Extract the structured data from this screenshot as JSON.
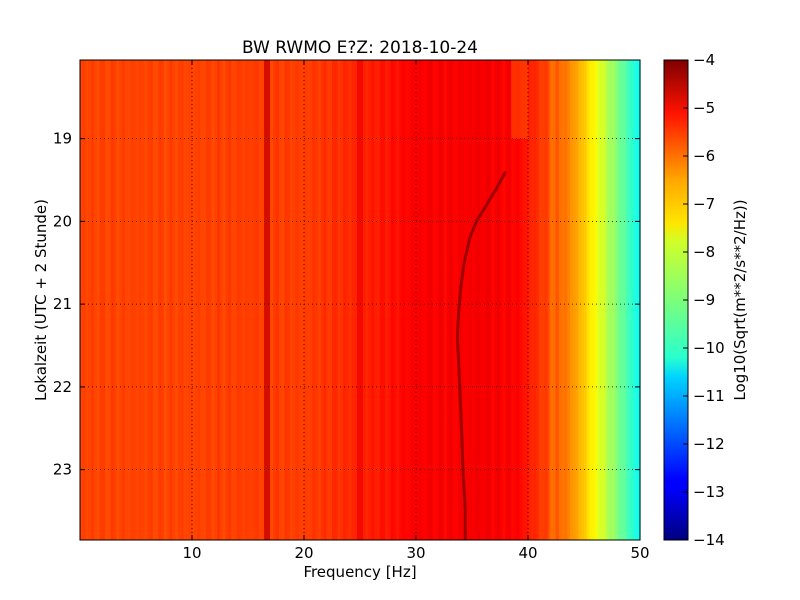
{
  "chart_data": {
    "type": "heatmap",
    "title": "BW RWMO E?Z: 2018-10-24",
    "xlabel": "Frequency [Hz]",
    "ylabel": "Lokalzeit (UTC + 2 Stunde)",
    "xlim": [
      0,
      50
    ],
    "ylim_hours_top_to_bottom": [
      18.05,
      23.85
    ],
    "x_ticks": [
      10,
      20,
      30,
      40,
      50
    ],
    "x_tick_labels": [
      "10",
      "20",
      "30",
      "40",
      "50"
    ],
    "y_ticks": [
      19,
      20,
      21,
      22,
      23
    ],
    "y_tick_labels": [
      "19",
      "20",
      "21",
      "22",
      "23"
    ],
    "grid": true,
    "colormap": "jet",
    "colorbar": {
      "label": "Log10(Sqrt(m**2/s**2/Hz))",
      "range": [
        -14,
        -4
      ],
      "ticks": [
        -4,
        -5,
        -6,
        -7,
        -8,
        -9,
        -10,
        -11,
        -12,
        -13,
        -14
      ],
      "tick_labels": [
        "−4",
        "−5",
        "−6",
        "−7",
        "−8",
        "−9",
        "−10",
        "−11",
        "−12",
        "−13",
        "−14"
      ]
    },
    "spectrum_profile": {
      "frequency_hz": [
        0,
        5,
        10,
        15,
        20,
        25,
        28,
        30,
        33,
        36,
        39,
        40,
        41,
        42,
        43,
        44,
        45,
        46,
        47,
        48,
        49,
        50
      ],
      "level_log10": [
        -5.9,
        -5.9,
        -5.9,
        -5.85,
        -5.85,
        -5.6,
        -5.4,
        -5.2,
        -5.2,
        -5.15,
        -5.25,
        -5.5,
        -5.75,
        -6.0,
        -6.3,
        -6.7,
        -7.2,
        -7.8,
        -8.4,
        -9.0,
        -9.6,
        -10.2
      ]
    },
    "features": {
      "vertical_band_hz": [
        {
          "f": 16.7,
          "level_log10": -4.7
        },
        {
          "f": 25.0,
          "level_log10": -5.1
        },
        {
          "f": 42.2,
          "level_log10": -6.4
        }
      ],
      "high_freq_rolloff_boundary_hz": {
        "before_19h": 38.5,
        "after_19h": 40.0
      },
      "drifting_line": {
        "time_h": [
          19.4,
          19.6,
          19.8,
          20.0,
          20.2,
          20.5,
          20.8,
          21.1,
          21.4,
          21.7,
          22.0,
          22.3,
          22.6,
          23.0,
          23.5,
          23.85
        ],
        "frequency_hz": [
          38.0,
          37.2,
          36.3,
          35.4,
          34.8,
          34.3,
          34.0,
          33.8,
          33.7,
          33.8,
          33.9,
          34.0,
          34.1,
          34.2,
          34.4,
          34.4
        ]
      }
    }
  }
}
